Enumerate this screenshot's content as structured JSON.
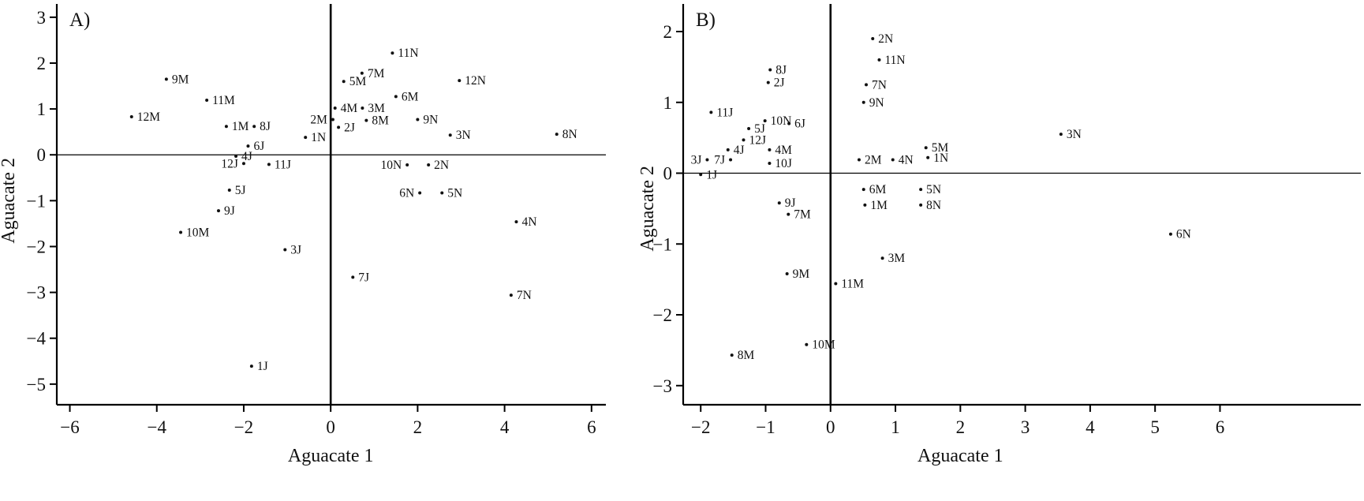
{
  "figure": {
    "description": "Two-panel scatter plot of avocado discriminant scores",
    "panel_a_letter": "A)",
    "panel_b_letter": "B)"
  },
  "chart_data": [
    {
      "type": "scatter",
      "panel_label": "A)",
      "xlabel": "Aguacate 1",
      "ylabel": "Aguacate 2",
      "xlim": [
        -6.3,
        6.33
      ],
      "ylim": [
        -5.45,
        3.29
      ],
      "xticks": [
        -6,
        -4,
        -2,
        0,
        2,
        4,
        6
      ],
      "yticks": [
        3,
        2,
        1,
        0,
        -1,
        -2,
        -3,
        -4,
        -5
      ],
      "grid": false,
      "zero_lines": true,
      "points": [
        {
          "label": "9M",
          "x": -3.78,
          "y": 1.65
        },
        {
          "label": "11M",
          "x": -2.85,
          "y": 1.19
        },
        {
          "label": "12M",
          "x": -4.58,
          "y": 0.83
        },
        {
          "label": "1M",
          "x": -2.4,
          "y": 0.62
        },
        {
          "label": "8J",
          "x": -1.76,
          "y": 0.62
        },
        {
          "label": "6J",
          "x": -1.9,
          "y": 0.19
        },
        {
          "label": "4J",
          "x": -2.18,
          "y": -0.03
        },
        {
          "label": "12J",
          "x": -2.0,
          "y": -0.19,
          "side": "left"
        },
        {
          "label": "11J",
          "x": -1.42,
          "y": -0.21
        },
        {
          "label": "1N",
          "x": -0.58,
          "y": 0.38
        },
        {
          "label": "2M",
          "x": 0.05,
          "y": 0.77,
          "side": "left"
        },
        {
          "label": "2J",
          "x": 0.18,
          "y": 0.6
        },
        {
          "label": "4M",
          "x": 0.1,
          "y": 1.02
        },
        {
          "label": "3M",
          "x": 0.73,
          "y": 1.02
        },
        {
          "label": "8M",
          "x": 0.82,
          "y": 0.75
        },
        {
          "label": "5M",
          "x": 0.3,
          "y": 1.6
        },
        {
          "label": "7M",
          "x": 0.72,
          "y": 1.78
        },
        {
          "label": "11N",
          "x": 1.42,
          "y": 2.22
        },
        {
          "label": "6M",
          "x": 1.5,
          "y": 1.27
        },
        {
          "label": "12N",
          "x": 2.96,
          "y": 1.62
        },
        {
          "label": "9N",
          "x": 2.0,
          "y": 0.77
        },
        {
          "label": "3N",
          "x": 2.75,
          "y": 0.43
        },
        {
          "label": "8N",
          "x": 5.2,
          "y": 0.45
        },
        {
          "label": "10N",
          "x": 1.76,
          "y": -0.22,
          "side": "left"
        },
        {
          "label": "2N",
          "x": 2.25,
          "y": -0.22
        },
        {
          "label": "6N",
          "x": 2.05,
          "y": -0.83,
          "side": "left"
        },
        {
          "label": "5N",
          "x": 2.56,
          "y": -0.83
        },
        {
          "label": "4N",
          "x": 4.27,
          "y": -1.46
        },
        {
          "label": "7N",
          "x": 4.15,
          "y": -3.06
        },
        {
          "label": "7J",
          "x": 0.51,
          "y": -2.67
        },
        {
          "label": "3J",
          "x": -1.05,
          "y": -2.07
        },
        {
          "label": "5J",
          "x": -2.33,
          "y": -0.77
        },
        {
          "label": "9J",
          "x": -2.58,
          "y": -1.22
        },
        {
          "label": "10M",
          "x": -3.45,
          "y": -1.69
        },
        {
          "label": "1J",
          "x": -1.82,
          "y": -4.61
        }
      ]
    },
    {
      "type": "scatter",
      "panel_label": "B)",
      "xlabel": "Aguacate 1",
      "ylabel": "Aguacate 2",
      "xlim": [
        -2.27,
        8.17
      ],
      "ylim": [
        -3.27,
        2.39
      ],
      "xticks": [
        -2,
        -1,
        0,
        1,
        2,
        3,
        4,
        5,
        6
      ],
      "yticks": [
        2,
        1,
        0,
        -1,
        -2,
        -3
      ],
      "grid": false,
      "zero_lines": true,
      "points": [
        {
          "label": "2N",
          "x": 0.65,
          "y": 1.9
        },
        {
          "label": "11N",
          "x": 0.75,
          "y": 1.6
        },
        {
          "label": "7N",
          "x": 0.55,
          "y": 1.25
        },
        {
          "label": "8J",
          "x": -0.93,
          "y": 1.46
        },
        {
          "label": "2J",
          "x": -0.96,
          "y": 1.28
        },
        {
          "label": "9N",
          "x": 0.51,
          "y": 1.0
        },
        {
          "label": "11J",
          "x": -1.84,
          "y": 0.86
        },
        {
          "label": "10N",
          "x": -1.01,
          "y": 0.74
        },
        {
          "label": "6J",
          "x": -0.64,
          "y": 0.7
        },
        {
          "label": "5J",
          "x": -1.26,
          "y": 0.63
        },
        {
          "label": "3N",
          "x": 3.55,
          "y": 0.55
        },
        {
          "label": "12J",
          "x": -1.34,
          "y": 0.47
        },
        {
          "label": "4J",
          "x": -1.58,
          "y": 0.33
        },
        {
          "label": "4M",
          "x": -0.94,
          "y": 0.33
        },
        {
          "label": "5M",
          "x": 1.47,
          "y": 0.36
        },
        {
          "label": "10J",
          "x": -0.94,
          "y": 0.14
        },
        {
          "label": "3J",
          "x": -1.9,
          "y": 0.19,
          "side": "left"
        },
        {
          "label": "7J",
          "x": -1.54,
          "y": 0.19,
          "side": "left"
        },
        {
          "label": "1J",
          "x": -2.0,
          "y": -0.02
        },
        {
          "label": "2M",
          "x": 0.44,
          "y": 0.19
        },
        {
          "label": "4N",
          "x": 0.96,
          "y": 0.19
        },
        {
          "label": "1N",
          "x": 1.5,
          "y": 0.22
        },
        {
          "label": "6M",
          "x": 0.51,
          "y": -0.23
        },
        {
          "label": "5N",
          "x": 1.39,
          "y": -0.23
        },
        {
          "label": "9J",
          "x": -0.79,
          "y": -0.42
        },
        {
          "label": "1M",
          "x": 0.53,
          "y": -0.45
        },
        {
          "label": "8N",
          "x": 1.39,
          "y": -0.45
        },
        {
          "label": "7M",
          "x": -0.65,
          "y": -0.58
        },
        {
          "label": "6N",
          "x": 5.24,
          "y": -0.86
        },
        {
          "label": "3M",
          "x": 0.8,
          "y": -1.2
        },
        {
          "label": "9M",
          "x": -0.67,
          "y": -1.42
        },
        {
          "label": "11M",
          "x": 0.08,
          "y": -1.56
        },
        {
          "label": "10M",
          "x": -0.37,
          "y": -2.42
        },
        {
          "label": "8M",
          "x": -1.52,
          "y": -2.57
        }
      ]
    }
  ]
}
